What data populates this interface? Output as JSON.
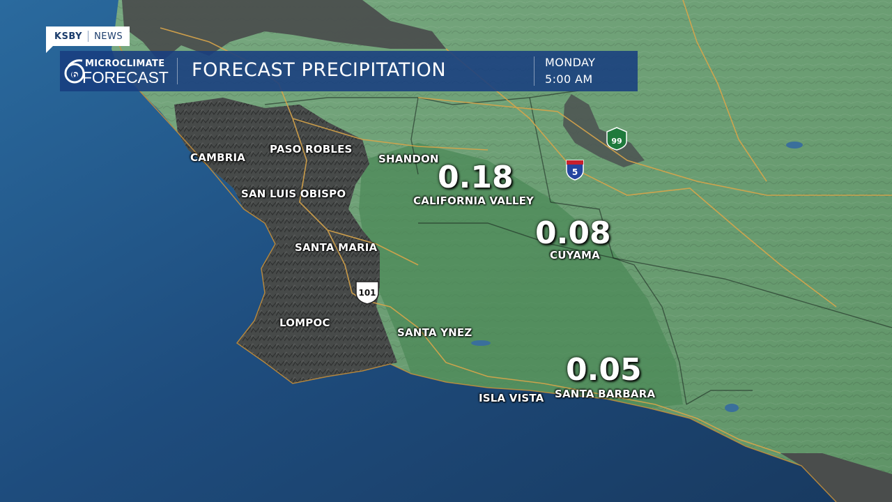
{
  "brand": {
    "station": "KSBY",
    "section": "NEWS",
    "logo_top": "MICROCLIMATE",
    "logo_bottom": "FORECAST",
    "logo_number": "6"
  },
  "header": {
    "title": "FORECAST PRECIPITATION",
    "day": "MONDAY",
    "time": "5:00 AM"
  },
  "cities": {
    "cambria": "CAMBRIA",
    "paso_robles": "PASO ROBLES",
    "shandon": "SHANDON",
    "san_luis_obispo": "SAN LUIS OBISPO",
    "california_valley": "CALIFORNIA VALLEY",
    "santa_maria": "SANTA MARIA",
    "cuyama": "CUYAMA",
    "lompoc": "LOMPOC",
    "santa_ynez": "SANTA YNEZ",
    "isla_vista": "ISLA VISTA",
    "santa_barbara": "SANTA BARBARA"
  },
  "precipitation": {
    "california_valley": "0.18",
    "cuyama": "0.08",
    "santa_barbara": "0.05"
  },
  "highways": {
    "us_101": "101",
    "i_5": "5",
    "ca_99": "99"
  },
  "colors": {
    "ocean": "#1f4f80",
    "land": "#6a9e72",
    "rain_shade": "#4f8c5a",
    "dry_land": "#4a4d4c",
    "coast_line": "#d9a54a",
    "header_bg": "#183e80"
  }
}
